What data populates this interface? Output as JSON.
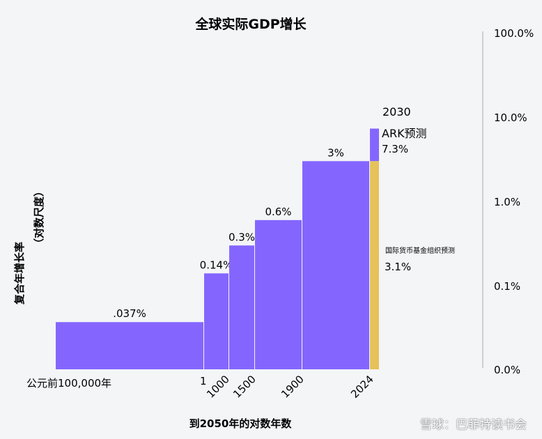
{
  "chart_data": {
    "type": "bar",
    "title": "全球实际GDP增长",
    "xlabel": "到2050年的对数年数",
    "ylabel": "复合年增长率",
    "ylabel_sub": "（对数尺度）",
    "y_scale": "log",
    "y_ticks": [
      "100.0%",
      "10.0%",
      "1.0%",
      "0.1%",
      "0.0%"
    ],
    "x_ticks": [
      "公元前100,000年",
      "1",
      "1000",
      "1500",
      "1900",
      "2024"
    ],
    "categories": [
      "公元前100,000年–1",
      "1–1000",
      "1000–1500",
      "1500–1900",
      "1900–2024"
    ],
    "values": [
      0.037,
      0.14,
      0.3,
      0.6,
      3
    ],
    "value_labels": [
      ".037%",
      "0.14%",
      "0.3%",
      "0.6%",
      "3%"
    ],
    "forecasts": [
      {
        "name": "ARK预测",
        "period_end": "2030",
        "value": 7.3,
        "label": "7.3%"
      },
      {
        "name": "国际货币基金组织预测",
        "value": 3.1,
        "label": "3.1%"
      }
    ],
    "colors": {
      "bars": "#8466ff",
      "imf": "#e6c25a",
      "axis": "#cfcfcf"
    },
    "grid": false
  },
  "watermark": "雪球：巴菲特读书会"
}
